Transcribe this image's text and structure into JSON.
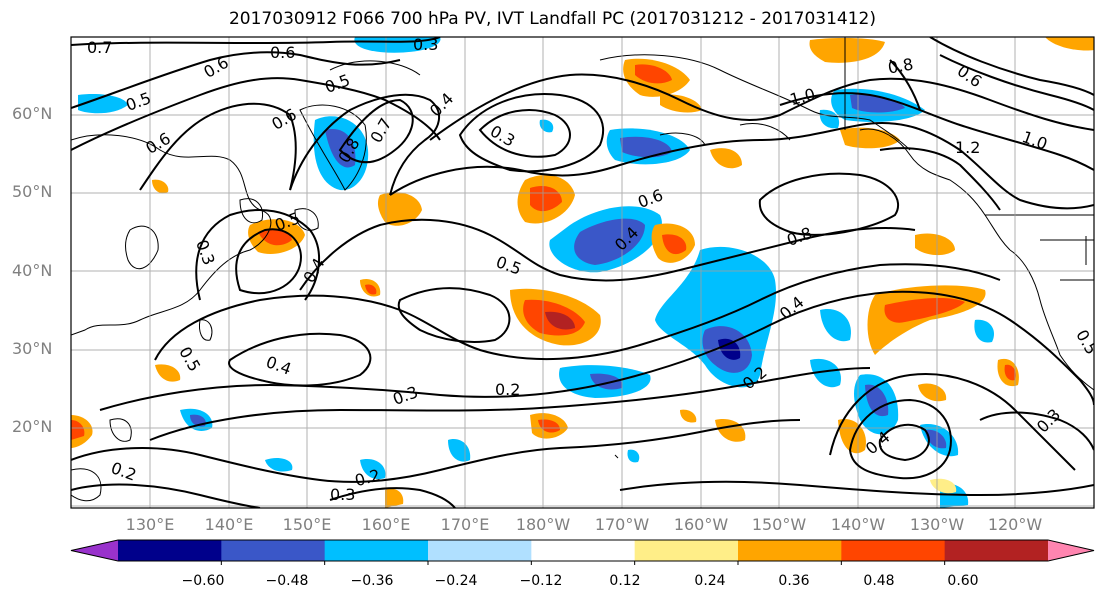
{
  "title": "2017030912 F066 700 hPa PV, IVT Landfall PC (2017031212 - 2017031412)",
  "lat_labels": [
    "60°N",
    "50°N",
    "40°N",
    "30°N",
    "20°N"
  ],
  "lon_labels": [
    "130°E",
    "140°E",
    "150°E",
    "160°E",
    "170°E",
    "180°W",
    "170°W",
    "160°W",
    "150°W",
    "140°W",
    "130°W",
    "120°W"
  ],
  "colorbar": {
    "ticks": [
      "−0.60",
      "−0.48",
      "−0.36",
      "−0.24",
      "−0.12",
      "0.12",
      "0.24",
      "0.36",
      "0.48",
      "0.60"
    ],
    "colors": [
      "#9932cc",
      "#00008b",
      "#3a57c8",
      "#00bfff",
      "#b0e0ff",
      "#ffffff",
      "#ffee88",
      "#ffa500",
      "#ff4500",
      "#b22222",
      "#ff85b0"
    ]
  },
  "contour_labels": [
    "0.7",
    "0.6",
    "0.6",
    "0.5",
    "0.5",
    "0.6",
    "0.6",
    "0.8",
    "0.7",
    "0.4",
    "0.3",
    "0.3",
    "0.8",
    "1.0",
    "0.6",
    "1.0",
    "1.2",
    "0.5",
    "0.3",
    "0.4",
    "0.5",
    "0.6",
    "0.4",
    "0.8",
    "0.5",
    "0.4",
    "0.4",
    "0.3",
    "0.2",
    "0.5",
    "0.2",
    "0.4",
    "0.2",
    "0.3",
    "0.2",
    "0.3"
  ]
}
